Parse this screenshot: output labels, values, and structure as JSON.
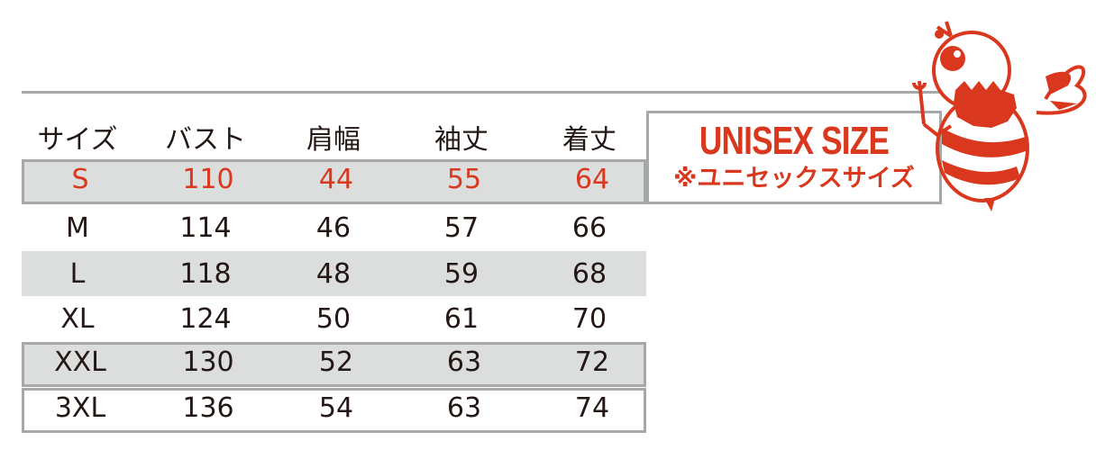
{
  "table": {
    "headers": [
      "サイズ",
      "バスト",
      "肩幅",
      "袖丈",
      "着丈"
    ],
    "rows": [
      [
        "S",
        "110",
        "44",
        "55",
        "64"
      ],
      [
        "M",
        "114",
        "46",
        "57",
        "66"
      ],
      [
        "L",
        "118",
        "48",
        "59",
        "68"
      ],
      [
        "XL",
        "124",
        "50",
        "61",
        "70"
      ],
      [
        "XXL",
        "130",
        "52",
        "63",
        "72"
      ],
      [
        "3XL",
        "136",
        "54",
        "63",
        "74"
      ]
    ],
    "highlight_row": "S"
  },
  "badge": {
    "title": "UNISEX SIZE",
    "subtitle": "※ユニセックスサイズ"
  },
  "mascot": {
    "icon": "bee-mascot-with-wrench-icon"
  },
  "colors": {
    "accent": "#d9381e",
    "row_shade": "#dcdddd",
    "border": "#a7a8a9",
    "text": "#231815"
  }
}
